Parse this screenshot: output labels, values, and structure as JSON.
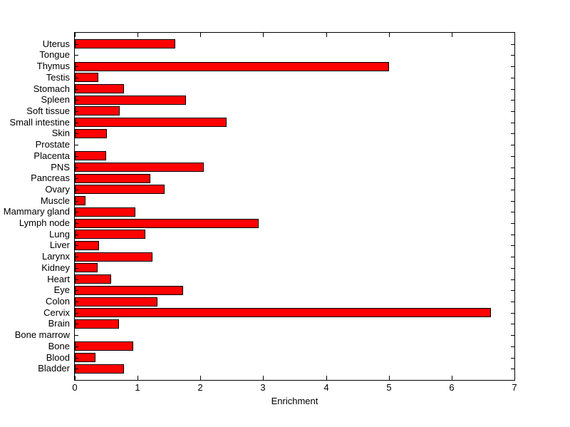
{
  "figure": {
    "background_color": "#ffffff",
    "axis_color": "#000000",
    "text_color": "#000000"
  },
  "chart_data": {
    "type": "bar",
    "orientation": "horizontal",
    "title": "",
    "xlabel": "Enrichment",
    "ylabel": "",
    "xlim": [
      0,
      7
    ],
    "x_ticks": [
      0,
      1,
      2,
      3,
      4,
      5,
      6,
      7
    ],
    "grid": false,
    "legend": null,
    "bar_fill_color": "#ff0000",
    "bar_edge_color": "#000000",
    "categories": [
      "Uterus",
      "Tongue",
      "Thymus",
      "Testis",
      "Stomach",
      "Spleen",
      "Soft tissue",
      "Small intestine",
      "Skin",
      "Prostate",
      "Placenta",
      "PNS",
      "Pancreas",
      "Ovary",
      "Muscle",
      "Mammary gland",
      "Lymph node",
      "Lung",
      "Liver",
      "Larynx",
      "Kidney",
      "Heart",
      "Eye",
      "Colon",
      "Cervix",
      "Brain",
      "Bone marrow",
      "Bone",
      "Blood",
      "Bladder"
    ],
    "values": [
      1.6,
      0,
      5.0,
      0.37,
      0.78,
      1.77,
      0.72,
      2.42,
      0.51,
      0,
      0.5,
      2.05,
      1.2,
      1.43,
      0.17,
      0.97,
      2.93,
      1.12,
      0.39,
      1.24,
      0.36,
      0.58,
      1.72,
      1.32,
      6.63,
      0.7,
      0,
      0.93,
      0.33,
      0.78
    ]
  }
}
